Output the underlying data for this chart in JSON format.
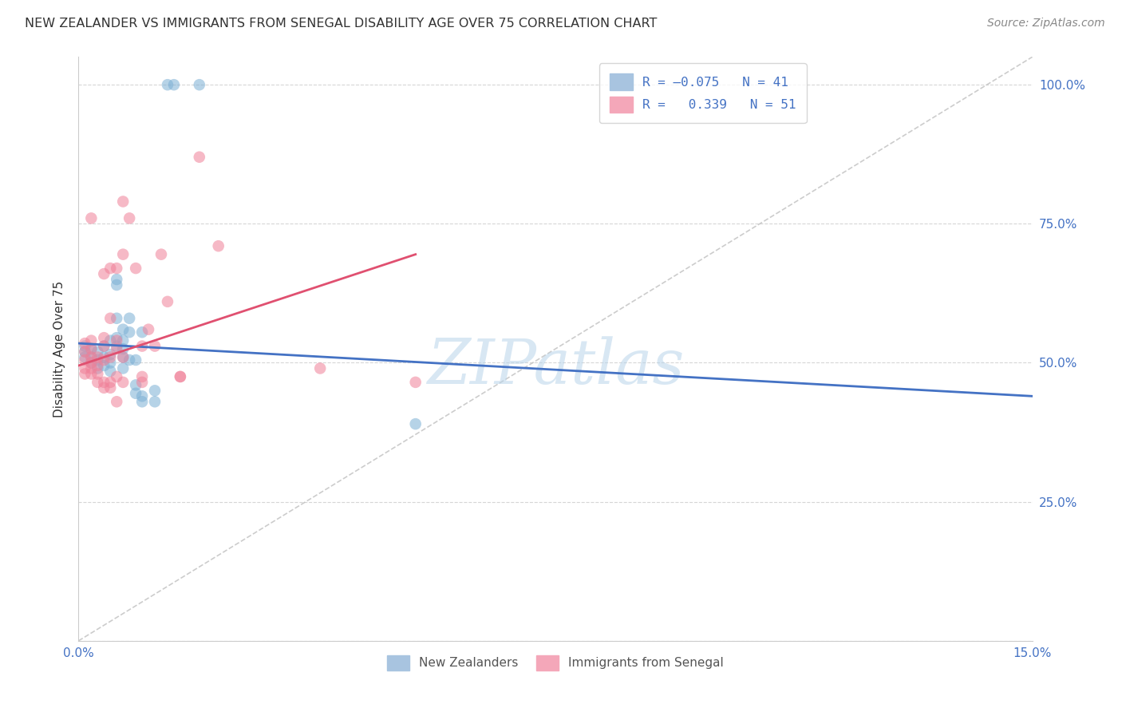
{
  "title": "NEW ZEALANDER VS IMMIGRANTS FROM SENEGAL DISABILITY AGE OVER 75 CORRELATION CHART",
  "source": "Source: ZipAtlas.com",
  "ylabel_label": "Disability Age Over 75",
  "xlim": [
    0.0,
    0.15
  ],
  "ylim": [
    0.0,
    1.05
  ],
  "watermark": "ZIPatlas",
  "nz_color": "#7bafd4",
  "senegal_color": "#f08098",
  "nz_line_color": "#4472c4",
  "senegal_line_color": "#e05070",
  "axis_color": "#4472c4",
  "background_color": "#ffffff",
  "grid_color": "#cccccc",
  "title_color": "#333333",
  "nz_points": [
    [
      0.001,
      0.53
    ],
    [
      0.001,
      0.52
    ],
    [
      0.001,
      0.51
    ],
    [
      0.002,
      0.525
    ],
    [
      0.002,
      0.51
    ],
    [
      0.002,
      0.5
    ],
    [
      0.003,
      0.52
    ],
    [
      0.003,
      0.505
    ],
    [
      0.003,
      0.49
    ],
    [
      0.004,
      0.53
    ],
    [
      0.004,
      0.51
    ],
    [
      0.004,
      0.495
    ],
    [
      0.005,
      0.54
    ],
    [
      0.005,
      0.515
    ],
    [
      0.005,
      0.5
    ],
    [
      0.005,
      0.485
    ],
    [
      0.006,
      0.65
    ],
    [
      0.006,
      0.64
    ],
    [
      0.006,
      0.58
    ],
    [
      0.006,
      0.545
    ],
    [
      0.006,
      0.53
    ],
    [
      0.007,
      0.56
    ],
    [
      0.007,
      0.54
    ],
    [
      0.007,
      0.525
    ],
    [
      0.007,
      0.51
    ],
    [
      0.007,
      0.49
    ],
    [
      0.008,
      0.58
    ],
    [
      0.008,
      0.555
    ],
    [
      0.008,
      0.505
    ],
    [
      0.009,
      0.505
    ],
    [
      0.009,
      0.46
    ],
    [
      0.009,
      0.445
    ],
    [
      0.01,
      0.555
    ],
    [
      0.01,
      0.44
    ],
    [
      0.01,
      0.43
    ],
    [
      0.012,
      0.45
    ],
    [
      0.012,
      0.43
    ],
    [
      0.014,
      1.0
    ],
    [
      0.015,
      1.0
    ],
    [
      0.019,
      1.0
    ],
    [
      0.053,
      0.39
    ]
  ],
  "senegal_points": [
    [
      0.001,
      0.535
    ],
    [
      0.001,
      0.52
    ],
    [
      0.001,
      0.505
    ],
    [
      0.001,
      0.49
    ],
    [
      0.001,
      0.48
    ],
    [
      0.002,
      0.76
    ],
    [
      0.002,
      0.54
    ],
    [
      0.002,
      0.525
    ],
    [
      0.002,
      0.51
    ],
    [
      0.002,
      0.5
    ],
    [
      0.002,
      0.49
    ],
    [
      0.002,
      0.48
    ],
    [
      0.003,
      0.51
    ],
    [
      0.003,
      0.495
    ],
    [
      0.003,
      0.48
    ],
    [
      0.003,
      0.465
    ],
    [
      0.004,
      0.66
    ],
    [
      0.004,
      0.545
    ],
    [
      0.004,
      0.53
    ],
    [
      0.004,
      0.505
    ],
    [
      0.004,
      0.465
    ],
    [
      0.004,
      0.455
    ],
    [
      0.005,
      0.67
    ],
    [
      0.005,
      0.58
    ],
    [
      0.005,
      0.51
    ],
    [
      0.005,
      0.465
    ],
    [
      0.005,
      0.455
    ],
    [
      0.006,
      0.67
    ],
    [
      0.006,
      0.54
    ],
    [
      0.006,
      0.525
    ],
    [
      0.006,
      0.475
    ],
    [
      0.006,
      0.43
    ],
    [
      0.007,
      0.79
    ],
    [
      0.007,
      0.695
    ],
    [
      0.007,
      0.51
    ],
    [
      0.007,
      0.465
    ],
    [
      0.008,
      0.76
    ],
    [
      0.009,
      0.67
    ],
    [
      0.01,
      0.53
    ],
    [
      0.01,
      0.465
    ],
    [
      0.01,
      0.475
    ],
    [
      0.011,
      0.56
    ],
    [
      0.012,
      0.53
    ],
    [
      0.013,
      0.695
    ],
    [
      0.014,
      0.61
    ],
    [
      0.016,
      0.475
    ],
    [
      0.016,
      0.475
    ],
    [
      0.019,
      0.87
    ],
    [
      0.022,
      0.71
    ],
    [
      0.038,
      0.49
    ],
    [
      0.053,
      0.465
    ]
  ],
  "nz_line": {
    "x0": 0.0,
    "x1": 0.15,
    "y0": 0.535,
    "y1": 0.44
  },
  "senegal_line": {
    "x0": 0.0,
    "x1": 0.053,
    "y0": 0.495,
    "y1": 0.695
  },
  "ref_line": {
    "x0": 0.0,
    "x1": 0.15,
    "y0": 0.0,
    "y1": 1.05
  }
}
